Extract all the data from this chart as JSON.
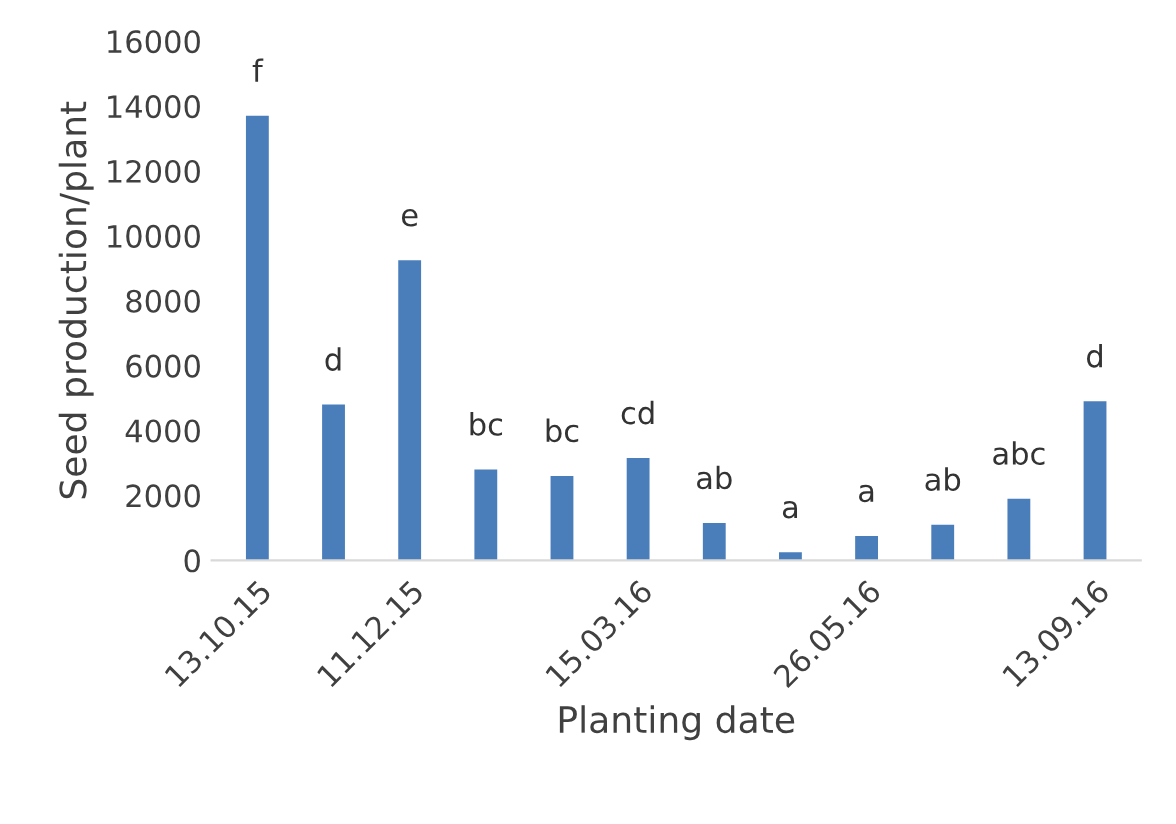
{
  "chart_data": {
    "type": "bar",
    "xlabel": "Planting date",
    "ylabel": "Seed production/plant",
    "categories": [
      "13.10.15",
      null,
      "11.12.15",
      null,
      null,
      "15.03.16",
      null,
      null,
      "26.05.16",
      null,
      null,
      "13.09.16"
    ],
    "values": [
      13700,
      4800,
      9250,
      2800,
      2600,
      3150,
      1150,
      250,
      750,
      1100,
      1900,
      4900
    ],
    "value_labels": [
      "f",
      "d",
      "e",
      "bc",
      "bc",
      "cd",
      "ab",
      "a",
      "a",
      "ab",
      "abc",
      "d"
    ],
    "color": "#4a7ebb",
    "ylim": [
      0,
      16000
    ],
    "yticks": [
      0,
      2000,
      4000,
      6000,
      8000,
      10000,
      12000,
      14000,
      16000
    ],
    "grid": false,
    "legend": false
  }
}
